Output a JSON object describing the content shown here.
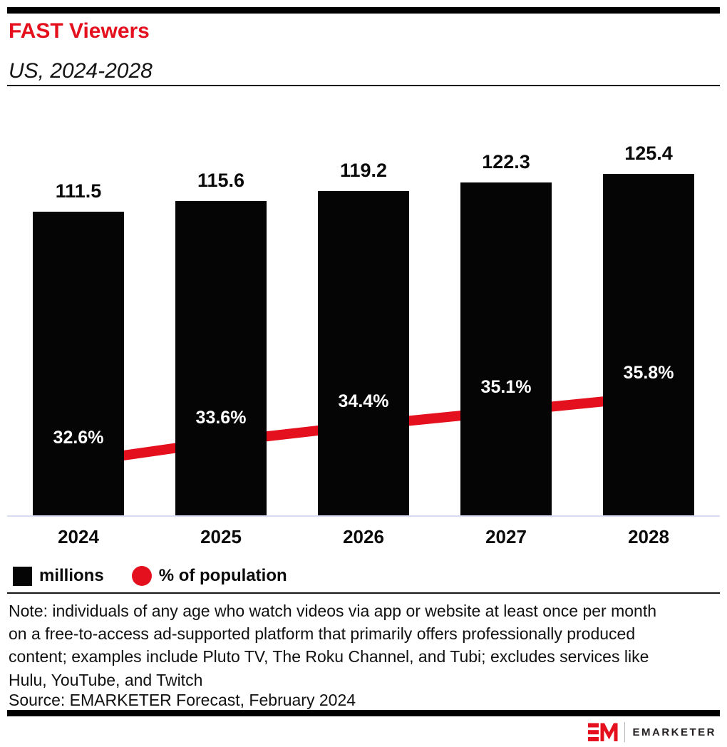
{
  "header": {
    "title": "FAST Viewers",
    "subtitle": "US, 2024-2028"
  },
  "chart_data": {
    "type": "bar",
    "categories": [
      "2024",
      "2025",
      "2026",
      "2027",
      "2028"
    ],
    "series": [
      {
        "name": "millions",
        "type": "bar",
        "color": "#050505",
        "values": [
          111.5,
          115.6,
          119.2,
          122.3,
          125.4
        ]
      },
      {
        "name": "% of population",
        "type": "line",
        "color": "#e4101e",
        "values": [
          32.6,
          33.6,
          34.4,
          35.1,
          35.8
        ]
      }
    ],
    "title": "FAST Viewers",
    "subtitle": "US, 2024-2028",
    "xlabel": "",
    "ylabel": "",
    "bar_axis_min": 0,
    "grid": false,
    "legend_position": "bottom",
    "data_labels": {
      "bar_format": "{v}",
      "line_format": "{v}%"
    }
  },
  "legend": {
    "items": [
      {
        "label": "millions",
        "swatch": "square",
        "color": "#050505"
      },
      {
        "label": "% of population",
        "swatch": "circle",
        "color": "#e4101e"
      }
    ]
  },
  "note_lines": [
    "Note: individuals of any age who watch videos via app or website at least once per month",
    "on a free-to-access ad-supported platform that primarily offers professionally produced",
    "content; examples include Pluto TV, The Roku Channel, and Tubi; excludes services like",
    "Hulu, YouTube, and Twitch"
  ],
  "source": "Source: EMARKETER Forecast, February 2024",
  "footer": {
    "logo_text": "EMARKETER",
    "logo_mark": "EM-monogram"
  },
  "colors": {
    "brand_red": "#e4101e",
    "bar_black": "#050505",
    "axis_line": "#d8dcf0",
    "text": "#111111"
  }
}
